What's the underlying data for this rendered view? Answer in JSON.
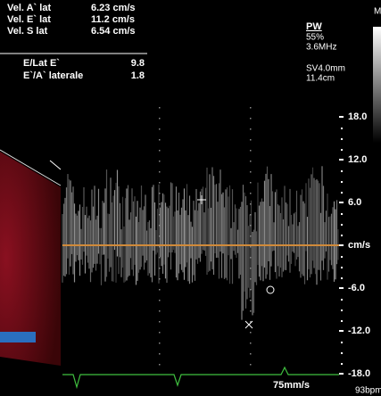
{
  "measurements": [
    {
      "label": "Vel. A` lat",
      "value": "6.23 cm/s"
    },
    {
      "label": "Vel. E` lat",
      "value": "11.2 cm/s"
    },
    {
      "label": "Vel. S lat",
      "value": "6.54 cm/s"
    }
  ],
  "ratios": [
    {
      "label": "E/Lat E`",
      "value": "9.8"
    },
    {
      "label": "E`/A` laterale",
      "value": "1.8"
    }
  ],
  "settings": {
    "mode": "PW",
    "gain": "55%",
    "frequency": "3.6MHz",
    "sample_volume": "SV4.0mm",
    "depth": "11.4cm",
    "corner": "M"
  },
  "scale": [
    "18.0",
    "12.0",
    "6.0",
    "cm/s",
    "-6.0",
    "-12.0",
    "-18.0"
  ],
  "sweep_speed": "75mm/s",
  "heart_rate": "93bpm"
}
